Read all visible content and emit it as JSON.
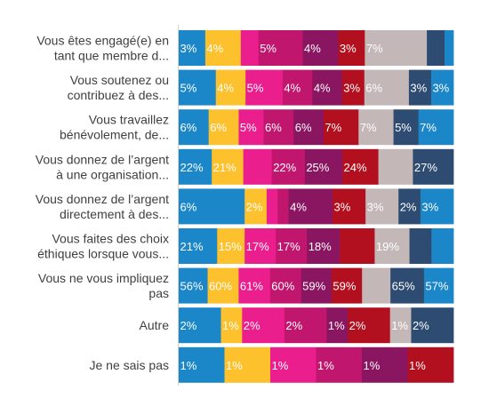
{
  "chart_data": {
    "type": "bar",
    "orientation": "horizontal",
    "stacked": true,
    "normalized_to_full_width": true,
    "title": "",
    "xlabel": "",
    "ylabel": "",
    "legend": "none",
    "grid": false,
    "colors": [
      "#1b87c9",
      "#fcc12d",
      "#ea1f8d",
      "#c0166d",
      "#8a1560",
      "#b3101f",
      "#c4b7b7",
      "#2e4c71"
    ],
    "categories": [
      {
        "lines": [
          "Vous êtes engagé(e) en",
          "tant que membre d..."
        ]
      },
      {
        "lines": [
          "Vous soutenez ou",
          "contribuez à des..."
        ]
      },
      {
        "lines": [
          "Vous travaillez",
          "bénévolement, de..."
        ]
      },
      {
        "lines": [
          "Vous donnez de l’argent",
          "à une organisation..."
        ]
      },
      {
        "lines": [
          "Vous donnez de l’argent",
          "directement à des..."
        ]
      },
      {
        "lines": [
          "Vous faites des choix",
          "éthiques lorsque vous..."
        ]
      },
      {
        "lines": [
          "Vous ne vous impliquez",
          "pas"
        ]
      },
      {
        "lines": [
          "Autre"
        ]
      },
      {
        "lines": [
          "Je ne sais pas"
        ]
      }
    ],
    "rows": [
      [
        {
          "v": 3,
          "l": "3%"
        },
        {
          "v": 4,
          "l": "4%"
        },
        {
          "v": 2,
          "l": ""
        },
        {
          "v": 5,
          "l": "5%"
        },
        {
          "v": 4,
          "l": "4%"
        },
        {
          "v": 3,
          "l": "3%"
        },
        {
          "v": 7,
          "l": "7%"
        },
        {
          "v": 2,
          "l": ""
        },
        {
          "v": 1,
          "l": ""
        }
      ],
      [
        {
          "v": 5,
          "l": "5%"
        },
        {
          "v": 4,
          "l": "4%"
        },
        {
          "v": 5,
          "l": "5%"
        },
        {
          "v": 4,
          "l": "4%"
        },
        {
          "v": 4,
          "l": "4%"
        },
        {
          "v": 3,
          "l": "3%"
        },
        {
          "v": 6,
          "l": "6%"
        },
        {
          "v": 3,
          "l": "3%"
        },
        {
          "v": 3,
          "l": "3%"
        }
      ],
      [
        {
          "v": 6,
          "l": "6%"
        },
        {
          "v": 6,
          "l": "6%"
        },
        {
          "v": 5,
          "l": "5%"
        },
        {
          "v": 6,
          "l": "6%"
        },
        {
          "v": 6,
          "l": "6%"
        },
        {
          "v": 7,
          "l": "7%"
        },
        {
          "v": 7,
          "l": "7%"
        },
        {
          "v": 5,
          "l": "5%"
        },
        {
          "v": 7,
          "l": "7%"
        }
      ],
      [
        {
          "v": 22,
          "l": "22%"
        },
        {
          "v": 21,
          "l": "21%"
        },
        {
          "v": 19,
          "l": ""
        },
        {
          "v": 22,
          "l": "22%"
        },
        {
          "v": 25,
          "l": "25%"
        },
        {
          "v": 24,
          "l": "24%"
        },
        {
          "v": 23,
          "l": ""
        },
        {
          "v": 27,
          "l": "27%"
        }
      ],
      [
        {
          "v": 6,
          "l": "6%"
        },
        {
          "v": 2,
          "l": "2%"
        },
        {
          "v": 1,
          "l": ""
        },
        {
          "v": 1,
          "l": ""
        },
        {
          "v": 4,
          "l": "4%"
        },
        {
          "v": 3,
          "l": "3%"
        },
        {
          "v": 3,
          "l": "3%"
        },
        {
          "v": 2,
          "l": "2%"
        },
        {
          "v": 3,
          "l": "3%"
        }
      ],
      [
        {
          "v": 21,
          "l": "21%"
        },
        {
          "v": 15,
          "l": "15%"
        },
        {
          "v": 17,
          "l": "17%"
        },
        {
          "v": 17,
          "l": "17%"
        },
        {
          "v": 18,
          "l": "18%"
        },
        {
          "v": 19,
          "l": ""
        },
        {
          "v": 19,
          "l": "19%"
        },
        {
          "v": 12,
          "l": ""
        },
        {
          "v": 12,
          "l": ""
        }
      ],
      [
        {
          "v": 56,
          "l": "56%"
        },
        {
          "v": 60,
          "l": "60%"
        },
        {
          "v": 61,
          "l": "61%"
        },
        {
          "v": 60,
          "l": "60%"
        },
        {
          "v": 59,
          "l": "59%"
        },
        {
          "v": 59,
          "l": "59%"
        },
        {
          "v": 55,
          "l": ""
        },
        {
          "v": 65,
          "l": "65%"
        },
        {
          "v": 57,
          "l": "57%"
        }
      ],
      [
        {
          "v": 2,
          "l": "2%"
        },
        {
          "v": 1,
          "l": "1%"
        },
        {
          "v": 2,
          "l": "2%"
        },
        {
          "v": 2,
          "l": "2%"
        },
        {
          "v": 1,
          "l": "1%"
        },
        {
          "v": 2,
          "l": "2%"
        },
        {
          "v": 1,
          "l": "1%"
        },
        {
          "v": 2,
          "l": "2%"
        }
      ],
      [
        {
          "v": 1,
          "l": "1%"
        },
        {
          "v": 1,
          "l": "1%"
        },
        {
          "v": 1,
          "l": "1%"
        },
        {
          "v": 1,
          "l": "1%"
        },
        {
          "v": 1,
          "l": "1%"
        },
        {
          "v": 1,
          "l": "1%"
        }
      ]
    ]
  }
}
